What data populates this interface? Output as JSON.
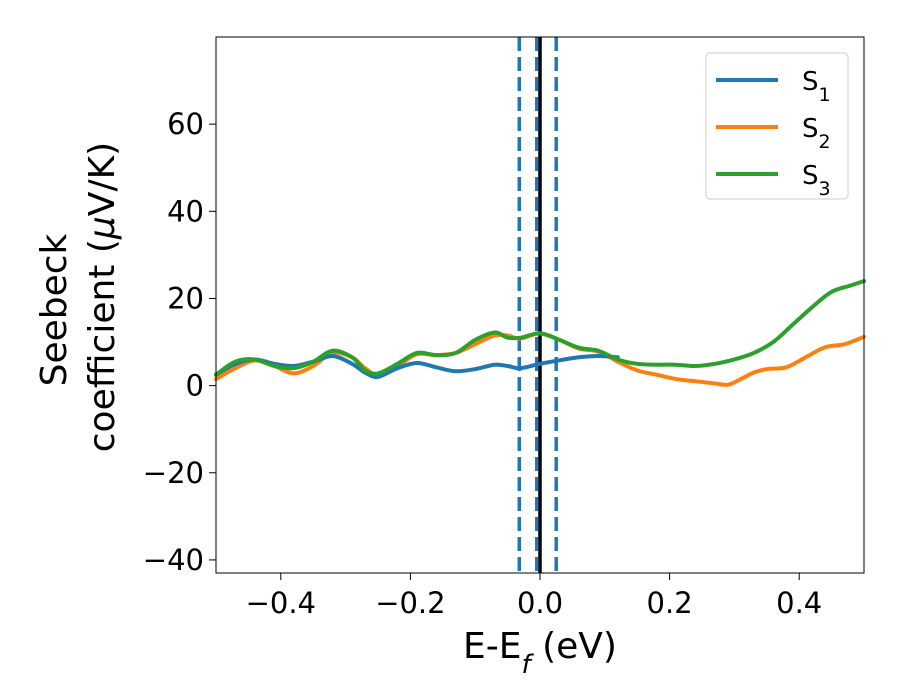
{
  "chart_data": {
    "type": "line",
    "xlabel": {
      "main": "E-E",
      "sub": "f",
      "tail": " (eV)"
    },
    "ylabel": {
      "line1": "Seebeck",
      "line2": "coefficient  (",
      "mu": "μ",
      "unit": "V/K)"
    },
    "xlim": [
      -0.5,
      0.5
    ],
    "ylim": [
      -43,
      80
    ],
    "xticks": [
      -0.4,
      -0.2,
      0.0,
      0.2,
      0.4
    ],
    "xtick_labels": [
      "−0.4",
      "−0.2",
      "0.0",
      "0.2",
      "0.4"
    ],
    "yticks": [
      -40,
      -20,
      0,
      20,
      40,
      60
    ],
    "ytick_labels": [
      "−40",
      "−20",
      "0",
      "20",
      "40",
      "60"
    ],
    "legend_position": "top-right",
    "vlines": [
      {
        "name": "fermi-level",
        "x": 0.0,
        "color": "#000000",
        "style": "solid"
      },
      {
        "name": "lower-bound",
        "x": -0.032,
        "color": "#1f77b4",
        "style": "dashed"
      },
      {
        "name": "zero-dashed",
        "x": -0.005,
        "color": "#1f77b4",
        "style": "dashed"
      },
      {
        "name": "upper-bound",
        "x": 0.025,
        "color": "#1f77b4",
        "style": "dashed"
      }
    ],
    "series": [
      {
        "name": "S",
        "sub": "1",
        "color": "#1f77b4",
        "x": [
          -0.5,
          -0.47,
          -0.44,
          -0.41,
          -0.38,
          -0.35,
          -0.32,
          -0.29,
          -0.27,
          -0.25,
          -0.22,
          -0.19,
          -0.16,
          -0.13,
          -0.1,
          -0.07,
          -0.05,
          -0.03,
          0.0,
          0.03,
          0.06,
          0.09,
          0.12
        ],
        "values": [
          2.5,
          5.0,
          6.0,
          5.0,
          4.5,
          5.5,
          6.8,
          5.0,
          3.0,
          2.0,
          4.0,
          5.2,
          4.2,
          3.3,
          3.8,
          4.8,
          4.5,
          4.0,
          5.0,
          5.8,
          6.5,
          6.8,
          6.5
        ]
      },
      {
        "name": "S",
        "sub": "2",
        "color": "#ff7f0e",
        "x": [
          -0.5,
          -0.47,
          -0.44,
          -0.41,
          -0.38,
          -0.35,
          -0.32,
          -0.29,
          -0.27,
          -0.25,
          -0.22,
          -0.19,
          -0.16,
          -0.13,
          -0.1,
          -0.07,
          -0.05,
          -0.03,
          0.0,
          0.03,
          0.06,
          0.09,
          0.12,
          0.15,
          0.18,
          0.21,
          0.24,
          0.27,
          0.29,
          0.31,
          0.33,
          0.35,
          0.38,
          0.41,
          0.44,
          0.47,
          0.5
        ],
        "values": [
          1.5,
          4.0,
          5.8,
          4.5,
          2.8,
          4.5,
          7.5,
          6.5,
          4.0,
          2.5,
          4.5,
          7.2,
          7.0,
          7.5,
          9.5,
          11.5,
          11.5,
          10.8,
          12.0,
          10.5,
          8.5,
          7.8,
          5.5,
          3.5,
          2.5,
          1.5,
          1.0,
          0.5,
          0.2,
          1.5,
          3.0,
          3.8,
          4.2,
          6.5,
          8.8,
          9.5,
          11.2
        ]
      },
      {
        "name": "S",
        "sub": "3",
        "color": "#2ca02c",
        "x": [
          -0.5,
          -0.47,
          -0.44,
          -0.41,
          -0.38,
          -0.35,
          -0.32,
          -0.29,
          -0.27,
          -0.25,
          -0.22,
          -0.19,
          -0.16,
          -0.13,
          -0.1,
          -0.07,
          -0.05,
          -0.03,
          0.0,
          0.03,
          0.06,
          0.09,
          0.12,
          0.15,
          0.18,
          0.21,
          0.24,
          0.27,
          0.3,
          0.33,
          0.36,
          0.39,
          0.42,
          0.45,
          0.48,
          0.5
        ],
        "values": [
          2.5,
          5.5,
          6.0,
          4.5,
          4.0,
          5.5,
          8.0,
          6.5,
          3.5,
          2.8,
          5.0,
          7.5,
          7.0,
          7.5,
          10.5,
          12.2,
          11.0,
          11.0,
          12.0,
          10.5,
          8.7,
          8.0,
          6.0,
          5.0,
          4.8,
          4.8,
          4.5,
          5.0,
          6.0,
          7.5,
          10.0,
          14.0,
          18.0,
          21.5,
          23.0,
          24.0
        ]
      }
    ]
  }
}
